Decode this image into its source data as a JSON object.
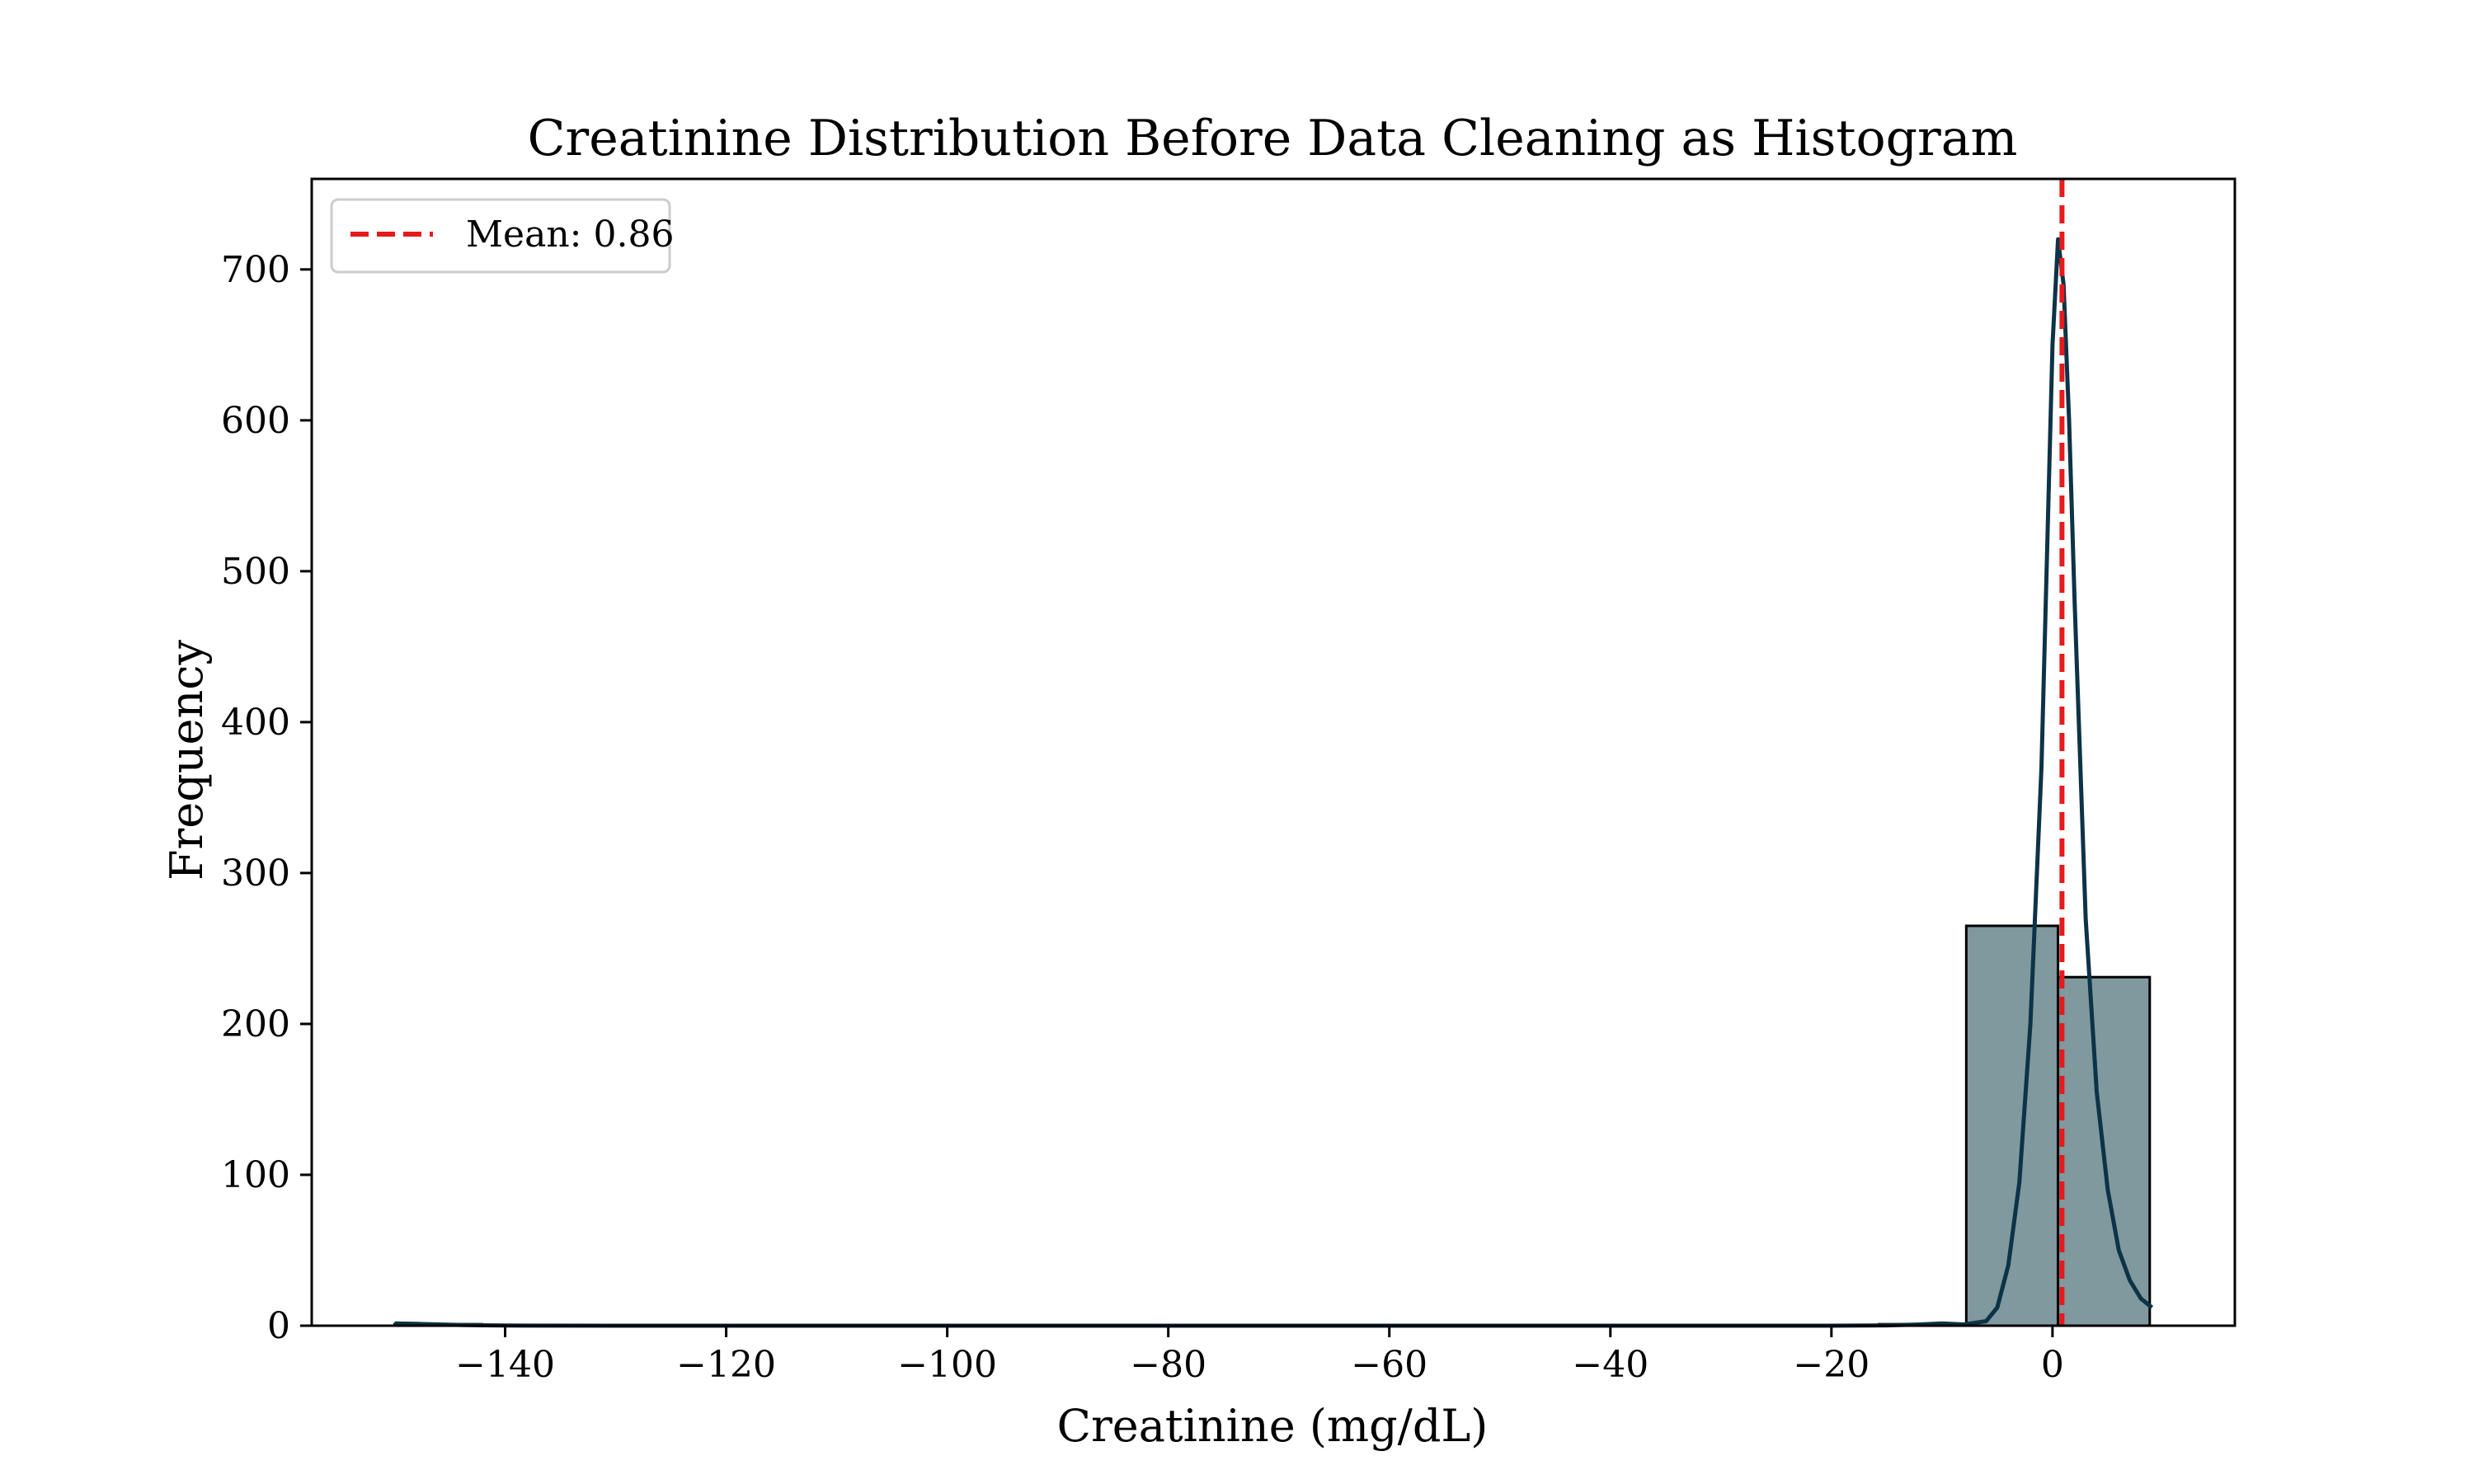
{
  "chart_data": {
    "type": "bar",
    "title": "Creatinine Distribution Before Data Cleaning as Histogram",
    "xlabel": "Creatinine (mg/dL)",
    "ylabel": "Frequency",
    "xlim": [
      -157.5,
      16.5
    ],
    "ylim": [
      0,
      760
    ],
    "xticks": [
      -140,
      -120,
      -100,
      -80,
      -60,
      -40,
      -20,
      0
    ],
    "xtick_labels": [
      "−140",
      "−120",
      "−100",
      "−80",
      "−60",
      "−40",
      "−20",
      "0"
    ],
    "yticks": [
      0,
      100,
      200,
      300,
      400,
      500,
      600,
      700
    ],
    "ytick_labels": [
      "0",
      "100",
      "200",
      "300",
      "400",
      "500",
      "600",
      "700"
    ],
    "bins": [
      {
        "x0": -150.0,
        "x1": -142.1,
        "count": 1
      },
      {
        "x0": -142.1,
        "x1": -134.2,
        "count": 0
      },
      {
        "x0": -134.2,
        "x1": -126.3,
        "count": 0
      },
      {
        "x0": -126.3,
        "x1": -118.4,
        "count": 0
      },
      {
        "x0": -118.4,
        "x1": -110.5,
        "count": 0
      },
      {
        "x0": -110.5,
        "x1": -102.6,
        "count": 0
      },
      {
        "x0": -102.6,
        "x1": -94.7,
        "count": 0
      },
      {
        "x0": -94.7,
        "x1": -86.8,
        "count": 0
      },
      {
        "x0": -86.8,
        "x1": -78.9,
        "count": 0
      },
      {
        "x0": -78.9,
        "x1": -71.0,
        "count": 0
      },
      {
        "x0": -71.0,
        "x1": -63.1,
        "count": 0
      },
      {
        "x0": -63.1,
        "x1": -55.2,
        "count": 0
      },
      {
        "x0": -55.2,
        "x1": -47.3,
        "count": 0
      },
      {
        "x0": -47.3,
        "x1": -39.4,
        "count": 0
      },
      {
        "x0": -39.4,
        "x1": -31.5,
        "count": 0
      },
      {
        "x0": -31.5,
        "x1": -23.6,
        "count": 0
      },
      {
        "x0": -23.6,
        "x1": -15.7,
        "count": 0
      },
      {
        "x0": -15.7,
        "x1": -7.8,
        "count": 1
      },
      {
        "x0": -7.8,
        "x1": 0.5,
        "count": 265
      },
      {
        "x0": 0.5,
        "x1": 8.8,
        "count": 231
      }
    ],
    "kde": {
      "x": [
        -150,
        -148,
        -146,
        -144,
        -142,
        -140,
        -130,
        -120,
        -100,
        -80,
        -60,
        -40,
        -20,
        -15,
        -12,
        -10,
        -8,
        -6,
        -5,
        -4,
        -3,
        -2,
        -1,
        0,
        0.5,
        1,
        1.5,
        2,
        3,
        4,
        5,
        6,
        7,
        8,
        9
      ],
      "y": [
        1.5,
        1.2,
        0.8,
        0.5,
        0.3,
        0.1,
        0,
        0,
        0,
        0,
        0,
        0,
        0,
        0.2,
        0.8,
        1.5,
        0.8,
        3,
        12,
        40,
        95,
        200,
        370,
        650,
        720,
        690,
        600,
        480,
        270,
        155,
        90,
        50,
        30,
        18,
        12
      ]
    },
    "mean_line": {
      "value": 0.86,
      "label": "Mean: 0.86",
      "color": "#e41a1c"
    },
    "legend": {
      "position": "top-left"
    },
    "grid": false,
    "colors": {
      "bar_fill": "#80999f",
      "bar_edge": "#000000",
      "kde_line": "#0d3347"
    }
  }
}
